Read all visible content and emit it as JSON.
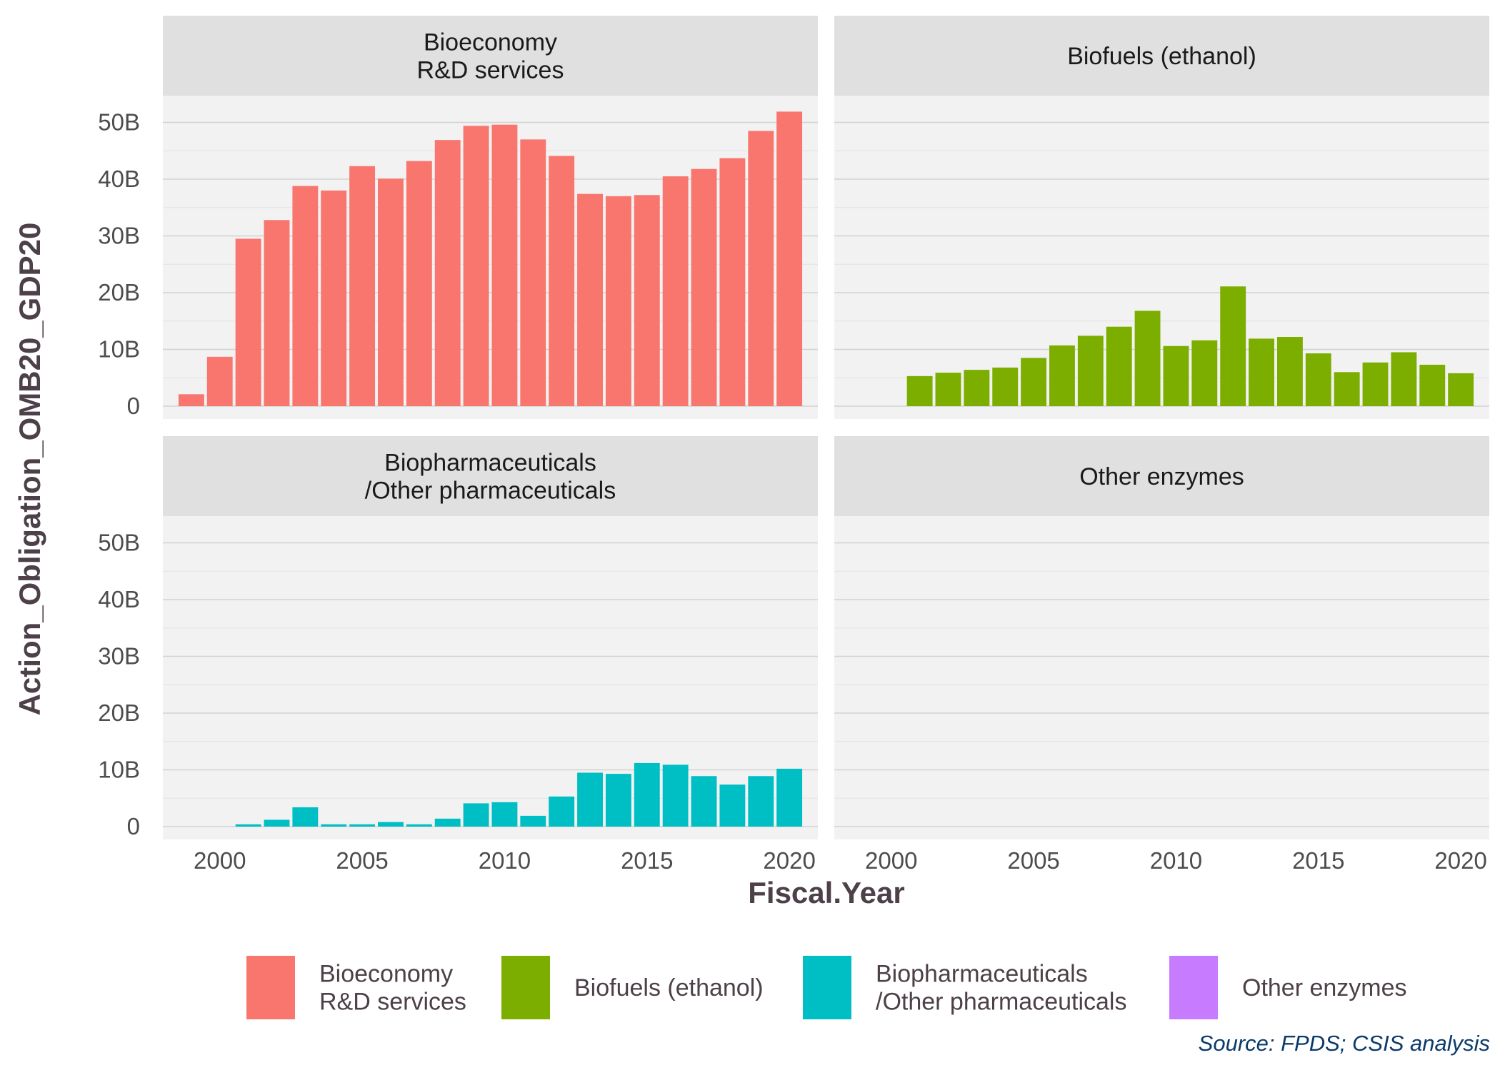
{
  "chart_data": {
    "type": "bar",
    "facet_layout": "2x2",
    "xlabel": "Fiscal.Year",
    "ylabel": "Action_Obligation_OMB20_GDP20",
    "xlim": [
      1998,
      2021
    ],
    "ylim": [
      0,
      53
    ],
    "x_ticks": [
      2000,
      2005,
      2010,
      2015,
      2020
    ],
    "y_ticks": [
      0,
      10,
      20,
      30,
      40,
      50
    ],
    "y_tick_labels": [
      "0",
      "10B",
      "20B",
      "30B",
      "40B",
      "50B"
    ],
    "y_unit_note": "billions",
    "grid": true,
    "legend_position": "bottom",
    "caption": "Source: FPDS; CSIS analysis",
    "panels": [
      {
        "title_lines": [
          "Bioeconomy",
          "R&D services"
        ],
        "color": "#F8766D",
        "years": [
          1999,
          2000,
          2001,
          2002,
          2003,
          2004,
          2005,
          2006,
          2007,
          2008,
          2009,
          2010,
          2011,
          2012,
          2013,
          2014,
          2015,
          2016,
          2017,
          2018,
          2019,
          2020
        ],
        "values": [
          2.1,
          8.7,
          29.5,
          32.8,
          38.8,
          38.0,
          42.3,
          40.1,
          43.2,
          46.9,
          49.4,
          49.6,
          47.0,
          44.1,
          37.4,
          37.0,
          37.2,
          40.5,
          41.8,
          43.7,
          48.5,
          51.9
        ]
      },
      {
        "title_lines": [
          "Biofuels (ethanol)"
        ],
        "color": "#7CAE00",
        "years": [
          2001,
          2002,
          2003,
          2004,
          2005,
          2006,
          2007,
          2008,
          2009,
          2010,
          2011,
          2012,
          2013,
          2014,
          2015,
          2016,
          2017,
          2018,
          2019,
          2020
        ],
        "values": [
          5.3,
          5.9,
          6.4,
          6.8,
          8.5,
          10.7,
          12.4,
          14.0,
          16.8,
          10.6,
          11.6,
          21.1,
          11.9,
          12.2,
          9.3,
          6.0,
          7.7,
          9.5,
          7.3,
          5.8
        ]
      },
      {
        "title_lines": [
          "Biopharmaceuticals",
          "/Other pharmaceuticals"
        ],
        "color": "#00BFC4",
        "years": [
          2001,
          2002,
          2003,
          2004,
          2005,
          2006,
          2007,
          2008,
          2009,
          2010,
          2011,
          2012,
          2013,
          2014,
          2015,
          2016,
          2017,
          2018,
          2019,
          2020
        ],
        "values": [
          0.4,
          1.2,
          3.4,
          0.4,
          0.4,
          0.8,
          0.4,
          1.4,
          4.1,
          4.3,
          1.9,
          5.3,
          9.5,
          9.3,
          11.2,
          10.9,
          8.9,
          7.4,
          8.9,
          10.2
        ]
      },
      {
        "title_lines": [
          "Other enzymes"
        ],
        "color": "#C77CFF",
        "years": [],
        "values": []
      }
    ],
    "legend": [
      {
        "label_lines": [
          "Bioeconomy",
          "R&D services"
        ],
        "color": "#F8766D"
      },
      {
        "label_lines": [
          "Biofuels (ethanol)"
        ],
        "color": "#7CAE00"
      },
      {
        "label_lines": [
          "Biopharmaceuticals",
          "/Other pharmaceuticals"
        ],
        "color": "#00BFC4"
      },
      {
        "label_lines": [
          "Other enzymes"
        ],
        "color": "#C77CFF"
      }
    ]
  }
}
